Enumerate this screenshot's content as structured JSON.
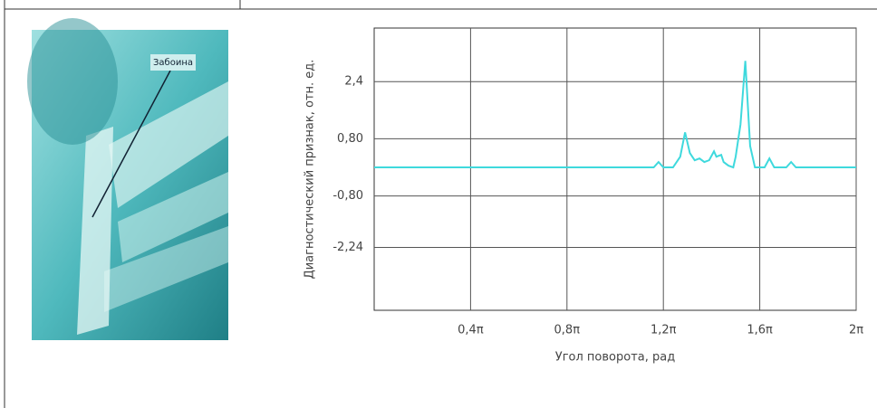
{
  "photo_label": "Забоина",
  "chart_data": {
    "type": "line",
    "xlabel": "Угол поворота, рад",
    "ylabel": "Диагностический признак, отн. ед.",
    "xlim": [
      0,
      2
    ],
    "xticks": [
      {
        "value": 0.4,
        "label": "0,4π"
      },
      {
        "value": 0.8,
        "label": "0,8π"
      },
      {
        "value": 1.2,
        "label": "1,2π"
      },
      {
        "value": 1.6,
        "label": "1,6π"
      },
      {
        "value": 2,
        "label": "2π"
      }
    ],
    "ylim": [
      -4,
      3.9
    ],
    "yticks": [
      {
        "value": 2.4,
        "label": "2,4"
      },
      {
        "value": 0.8,
        "label": "0,80"
      },
      {
        "value": -0.8,
        "label": "-0,80"
      },
      {
        "value": -2.24,
        "label": "-2,24"
      }
    ],
    "grid": true,
    "series": [
      {
        "color": "#3fd9dd",
        "x": [
          0,
          1.16,
          1.18,
          1.2,
          1.24,
          1.27,
          1.29,
          1.31,
          1.33,
          1.35,
          1.37,
          1.39,
          1.41,
          1.42,
          1.44,
          1.45,
          1.47,
          1.49,
          1.5,
          1.52,
          1.54,
          1.56,
          1.58,
          1.62,
          1.64,
          1.66,
          1.71,
          1.73,
          1.75,
          2
        ],
        "values": [
          0,
          0,
          0.15,
          0,
          0,
          0.3,
          0.98,
          0.4,
          0.2,
          0.25,
          0.15,
          0.2,
          0.45,
          0.3,
          0.35,
          0.15,
          0.05,
          0,
          0.3,
          1.2,
          2.98,
          0.6,
          0,
          0,
          0.25,
          0,
          0,
          0.15,
          0,
          0
        ]
      }
    ]
  }
}
